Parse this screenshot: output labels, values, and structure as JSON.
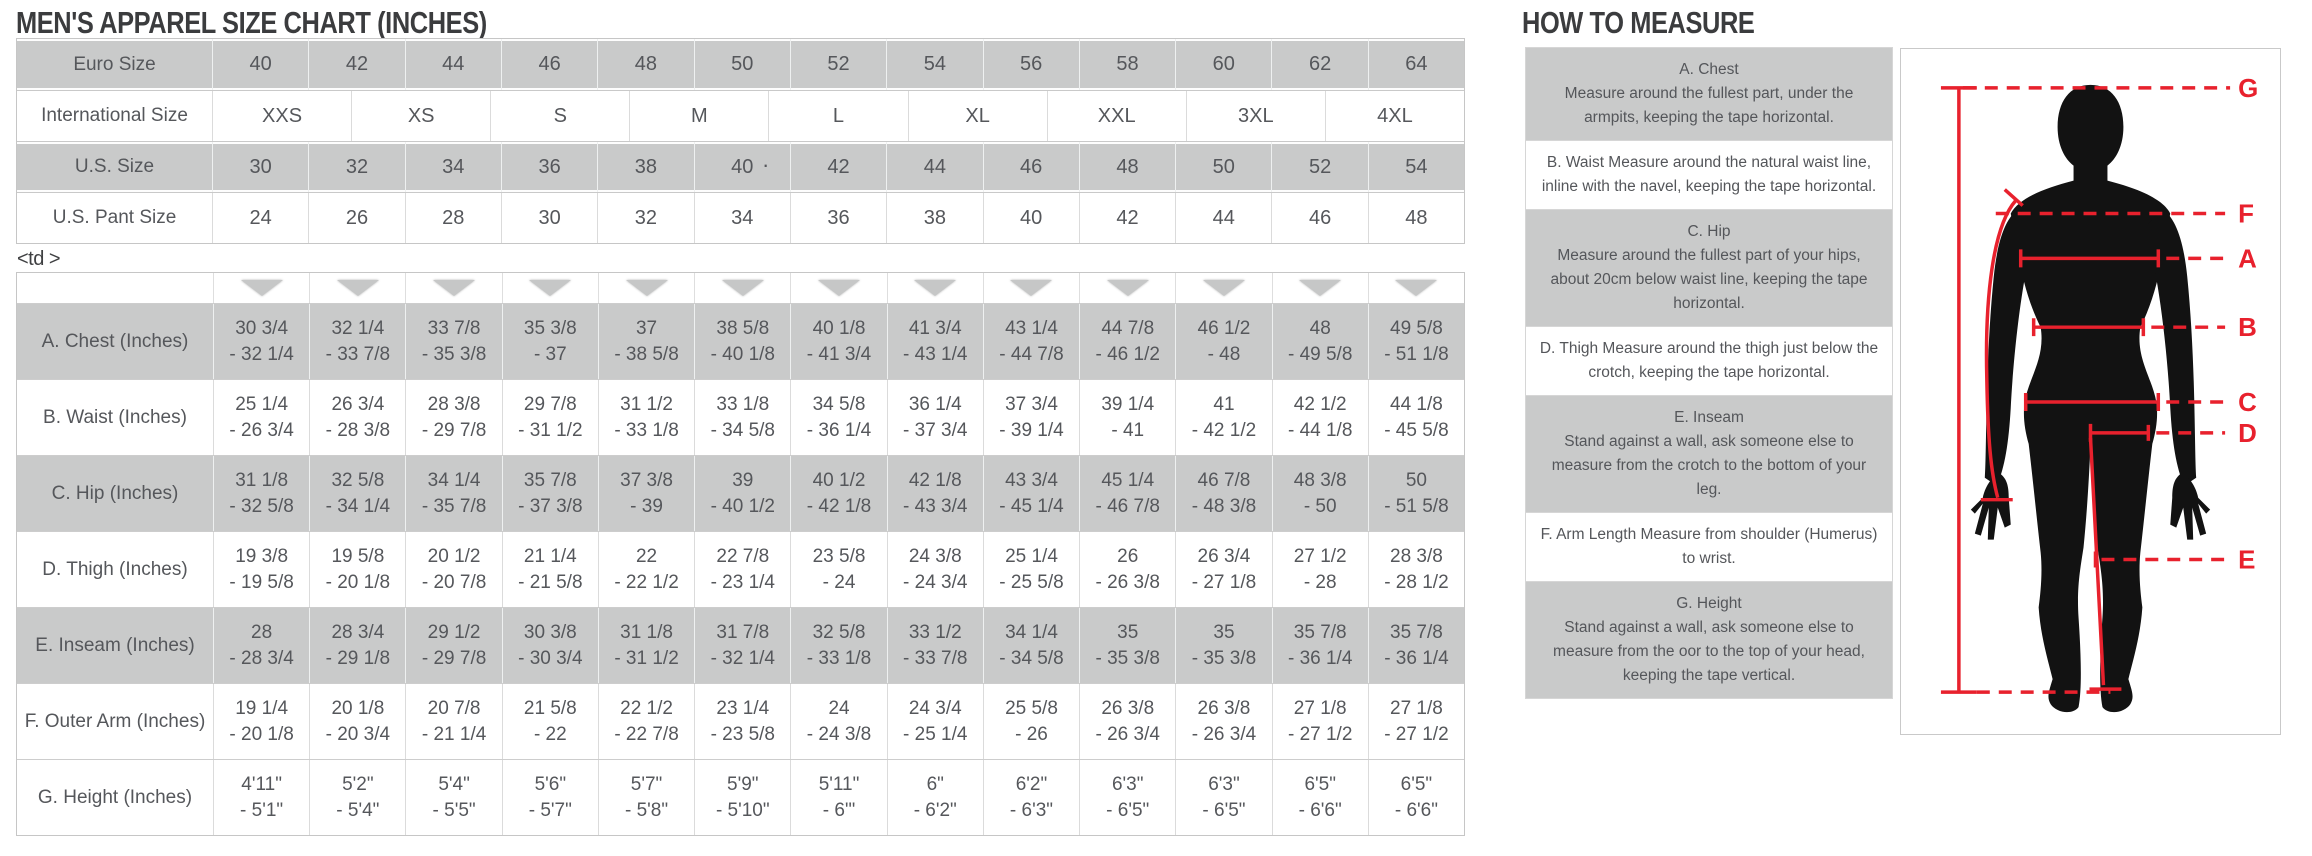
{
  "page": {
    "size_chart_title": "MEN'S APPAREL SIZE CHART (INCHES)",
    "how_to_title": "HOW TO MEASURE",
    "stray_markup": "<td >",
    "stray_dot": "·"
  },
  "colors": {
    "row_gray_bg": "#c9caca",
    "table_text": "#55575b",
    "accent_red": "#e8212d",
    "silhouette_black": "#121212"
  },
  "size_table": {
    "rows": [
      {
        "label": "Euro Size",
        "shade": "gray",
        "values": [
          "40",
          "42",
          "44",
          "46",
          "48",
          "50",
          "52",
          "54",
          "56",
          "58",
          "60",
          "62",
          "64"
        ]
      },
      {
        "label": "International Size",
        "shade": "white",
        "values": [
          "XXS",
          "XS",
          "S",
          "M",
          "L",
          "XL",
          "XXL",
          "3XL",
          "4XL"
        ]
      },
      {
        "label": "U.S. Size",
        "shade": "gray",
        "values": [
          "30",
          "32",
          "34",
          "36",
          "38",
          "40",
          "42",
          "44",
          "46",
          "48",
          "50",
          "52",
          "54"
        ]
      },
      {
        "label": "U.S. Pant Size",
        "shade": "white",
        "values": [
          "24",
          "26",
          "28",
          "30",
          "32",
          "34",
          "36",
          "38",
          "40",
          "42",
          "44",
          "46",
          "48"
        ]
      }
    ]
  },
  "measurement_table": {
    "rows": [
      {
        "label": "A. Chest (Inches)",
        "shade": "gray",
        "cells": [
          [
            "30 3/4",
            "- 32 1/4"
          ],
          [
            "32 1/4",
            "- 33 7/8"
          ],
          [
            "33 7/8",
            "- 35 3/8"
          ],
          [
            "35 3/8",
            "- 37"
          ],
          [
            "37",
            "- 38 5/8"
          ],
          [
            "38 5/8",
            "- 40 1/8"
          ],
          [
            "40 1/8",
            "- 41 3/4"
          ],
          [
            "41 3/4",
            "- 43 1/4"
          ],
          [
            "43 1/4",
            "- 44 7/8"
          ],
          [
            "44 7/8",
            "- 46 1/2"
          ],
          [
            "46 1/2",
            "- 48"
          ],
          [
            "48",
            "- 49 5/8"
          ],
          [
            "49 5/8",
            "- 51 1/8"
          ]
        ]
      },
      {
        "label": "B. Waist (Inches)",
        "shade": "white",
        "cells": [
          [
            "25 1/4",
            "- 26 3/4"
          ],
          [
            "26 3/4",
            "- 28 3/8"
          ],
          [
            "28 3/8",
            "- 29 7/8"
          ],
          [
            "29 7/8",
            "- 31 1/2"
          ],
          [
            "31 1/2",
            "- 33 1/8"
          ],
          [
            "33 1/8",
            "- 34 5/8"
          ],
          [
            "34 5/8",
            "- 36 1/4"
          ],
          [
            "36 1/4",
            "- 37 3/4"
          ],
          [
            "37 3/4",
            "- 39 1/4"
          ],
          [
            "39 1/4",
            "- 41"
          ],
          [
            "41",
            "- 42 1/2"
          ],
          [
            "42 1/2",
            "- 44 1/8"
          ],
          [
            "44 1/8",
            "- 45 5/8"
          ]
        ]
      },
      {
        "label": "C. Hip (Inches)",
        "shade": "gray",
        "cells": [
          [
            "31 1/8",
            "- 32 5/8"
          ],
          [
            "32 5/8",
            "- 34 1/4"
          ],
          [
            "34 1/4",
            "- 35 7/8"
          ],
          [
            "35 7/8",
            "- 37 3/8"
          ],
          [
            "37 3/8",
            "- 39"
          ],
          [
            "39",
            "- 40 1/2"
          ],
          [
            "40 1/2",
            "- 42 1/8"
          ],
          [
            "42 1/8",
            "- 43 3/4"
          ],
          [
            "43 3/4",
            "- 45 1/4"
          ],
          [
            "45 1/4",
            "- 46 7/8"
          ],
          [
            "46 7/8",
            "- 48 3/8"
          ],
          [
            "48 3/8",
            "- 50"
          ],
          [
            "50",
            "- 51 5/8"
          ]
        ]
      },
      {
        "label": "D. Thigh (Inches)",
        "shade": "white",
        "cells": [
          [
            "19 3/8",
            "- 19 5/8"
          ],
          [
            "19 5/8",
            "- 20 1/8"
          ],
          [
            "20 1/2",
            "- 20 7/8"
          ],
          [
            "21 1/4",
            "- 21 5/8"
          ],
          [
            "22",
            "- 22 1/2"
          ],
          [
            "22 7/8",
            "- 23 1/4"
          ],
          [
            "23 5/8",
            "- 24"
          ],
          [
            "24 3/8",
            "- 24 3/4"
          ],
          [
            "25 1/4",
            "- 25 5/8"
          ],
          [
            "26",
            "- 26 3/8"
          ],
          [
            "26 3/4",
            "- 27 1/8"
          ],
          [
            "27 1/2",
            "- 28"
          ],
          [
            "28 3/8",
            "- 28 1/2"
          ]
        ]
      },
      {
        "label": "E. Inseam (Inches)",
        "shade": "gray",
        "cells": [
          [
            "28",
            "- 28 3/4"
          ],
          [
            "28 3/4",
            "- 29 1/8"
          ],
          [
            "29 1/2",
            "- 29 7/8"
          ],
          [
            "30 3/8",
            "- 30 3/4"
          ],
          [
            "31 1/8",
            "- 31 1/2"
          ],
          [
            "31 7/8",
            "- 32 1/4"
          ],
          [
            "32 5/8",
            "- 33 1/8"
          ],
          [
            "33 1/2",
            "- 33 7/8"
          ],
          [
            "34 1/4",
            "- 34 5/8"
          ],
          [
            "35",
            "- 35 3/8"
          ],
          [
            "35",
            "- 35 3/8"
          ],
          [
            "35 7/8",
            "- 36 1/4"
          ],
          [
            "35 7/8",
            "- 36 1/4"
          ]
        ]
      },
      {
        "label": "F. Outer Arm (Inches)",
        "shade": "white",
        "cells": [
          [
            "19 1/4",
            "- 20 1/8"
          ],
          [
            "20 1/8",
            "- 20 3/4"
          ],
          [
            "20 7/8",
            "- 21 1/4"
          ],
          [
            "21 5/8",
            "- 22"
          ],
          [
            "22 1/2",
            "- 22 7/8"
          ],
          [
            "23 1/4",
            "- 23 5/8"
          ],
          [
            "24",
            "- 24 3/8"
          ],
          [
            "24 3/4",
            "- 25 1/4"
          ],
          [
            "25 5/8",
            "- 26"
          ],
          [
            "26 3/8",
            "- 26 3/4"
          ],
          [
            "26 3/8",
            "- 26 3/4"
          ],
          [
            "27 1/8",
            "- 27 1/2"
          ],
          [
            "27 1/8",
            "- 27 1/2"
          ]
        ]
      },
      {
        "label": "G. Height (Inches)",
        "shade": "white",
        "cells": [
          [
            "4'11\"",
            "- 5'1\""
          ],
          [
            "5'2\"",
            "- 5'4\""
          ],
          [
            "5'4\"",
            "- 5'5\""
          ],
          [
            "5'6\"",
            "- 5'7\""
          ],
          [
            "5'7\"",
            "- 5'8\""
          ],
          [
            "5'9\"",
            "- 5'10\""
          ],
          [
            "5'11\"",
            "- 6'\""
          ],
          [
            "6\"",
            "- 6'2\""
          ],
          [
            "6'2\"",
            "- 6'3\""
          ],
          [
            "6'3\"",
            "- 6'5\""
          ],
          [
            "6'3\"",
            "- 6'5\""
          ],
          [
            "6'5\"",
            "- 6'6\""
          ],
          [
            "6'5\"",
            "- 6'6\""
          ]
        ]
      }
    ]
  },
  "how_to_measure": {
    "items": [
      {
        "heading": "A. Chest",
        "shade": "gray",
        "text": "Measure around the fullest part, under the armpits, keeping the tape horizontal."
      },
      {
        "heading": "",
        "shade": "white",
        "text": "B. Waist Measure around the natural waist line, inline with the navel, keeping the tape horizontal."
      },
      {
        "heading": "C. Hip",
        "shade": "gray",
        "text": "Measure around the fullest part of your hips, about 20cm below waist line, keeping the tape horizontal."
      },
      {
        "heading": "",
        "shade": "white",
        "text": "D. Thigh Measure around the thigh just below the crotch, keeping the tape horizontal."
      },
      {
        "heading": "E. Inseam",
        "shade": "gray",
        "text": "Stand against a wall, ask someone else to measure from the crotch to the bottom of your leg."
      },
      {
        "heading": "",
        "shade": "white",
        "text": "F. Arm Length Measure from shoulder (Humerus) to wrist."
      },
      {
        "heading": "G. Height",
        "shade": "gray",
        "text": "Stand against a wall, ask someone else to measure from the oor to the top of your head, keeping the tape vertical."
      }
    ]
  },
  "figure": {
    "labels": [
      "G",
      "F",
      "A",
      "B",
      "C",
      "D",
      "E"
    ]
  }
}
